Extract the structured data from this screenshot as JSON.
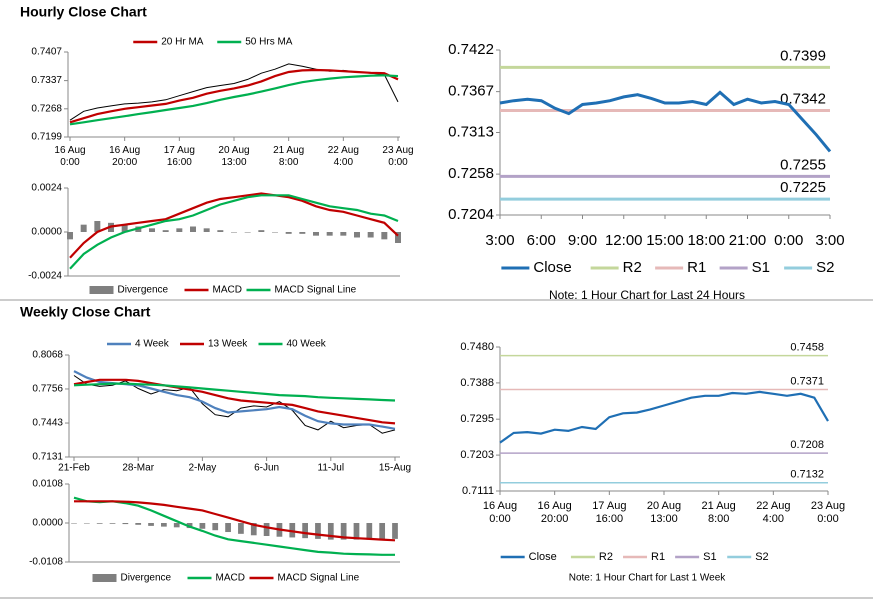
{
  "chart_data": [
    {
      "type": "line",
      "title": "Hourly Close Chart",
      "categories": [
        "16 Aug\n0:00",
        null,
        null,
        null,
        "16 Aug\n20:00",
        null,
        null,
        null,
        "17 Aug\n16:00",
        null,
        null,
        null,
        "20 Aug\n13:00",
        null,
        null,
        null,
        "21 Aug\n8:00",
        null,
        null,
        null,
        "22 Aug\n4:00",
        null,
        null,
        null,
        "23 Aug\n0:00"
      ],
      "ylim": [
        0.7199,
        0.7407
      ],
      "yticks": [
        0.7199,
        0.7268,
        0.7337,
        0.7407
      ],
      "series": [
        {
          "color": "#000000",
          "style": "line",
          "values": [
            0.724,
            0.7262,
            0.727,
            0.7275,
            0.728,
            0.7282,
            0.7285,
            0.729,
            0.73,
            0.731,
            0.732,
            0.7325,
            0.733,
            0.734,
            0.7355,
            0.7365,
            0.7378,
            0.7372,
            0.7365,
            0.736,
            0.7362,
            0.7358,
            0.7355,
            0.7352,
            0.7285
          ]
        },
        {
          "name": "20 Hr MA",
          "color": "#c00000",
          "style": "line",
          "values": [
            0.7235,
            0.7245,
            0.7255,
            0.7262,
            0.7268,
            0.7272,
            0.7276,
            0.728,
            0.7288,
            0.7295,
            0.7305,
            0.7312,
            0.7318,
            0.7325,
            0.7335,
            0.7348,
            0.7358,
            0.7362,
            0.7363,
            0.7362,
            0.736,
            0.7358,
            0.7356,
            0.7355,
            0.734
          ]
        },
        {
          "name": "50 Hrs MA",
          "color": "#00b050",
          "style": "line",
          "values": [
            0.723,
            0.7235,
            0.724,
            0.7245,
            0.725,
            0.7255,
            0.726,
            0.7265,
            0.727,
            0.7275,
            0.7282,
            0.729,
            0.7297,
            0.7303,
            0.731,
            0.7318,
            0.7326,
            0.7333,
            0.7338,
            0.7342,
            0.7345,
            0.7347,
            0.7349,
            0.735,
            0.7348
          ]
        }
      ]
    },
    {
      "type": "line",
      "categories": [
        null,
        null,
        null,
        null,
        null,
        null,
        null,
        null,
        null,
        null,
        null,
        null,
        null,
        null,
        null,
        null,
        null,
        null,
        null,
        null,
        null,
        null,
        null,
        null,
        null
      ],
      "ylim": [
        -0.0024,
        0.0024
      ],
      "yticks": [
        -0.0024,
        {
          "value": 0,
          "label": "0.0000"
        },
        0.0024
      ],
      "series": [
        {
          "name": "Divergence",
          "color": "#7f7f7f",
          "style": "bar",
          "values": [
            -0.0004,
            0.0004,
            0.0006,
            0.0005,
            0.0004,
            0.0003,
            0.0002,
            0.0001,
            0.0002,
            0.0003,
            0.0002,
            0.0001,
            0,
            0,
            0.0001,
            0,
            -0.0001,
            -0.0001,
            -0.0002,
            -0.0002,
            -0.0002,
            -0.0003,
            -0.0003,
            -0.0004,
            -0.0006
          ]
        },
        {
          "name": "MACD",
          "color": "#c00000",
          "style": "line",
          "values": [
            -0.0014,
            -0.0006,
            0,
            0.0003,
            0.0004,
            0.0005,
            0.0006,
            0.0007,
            0.001,
            0.0013,
            0.0016,
            0.0018,
            0.0019,
            0.002,
            0.0021,
            0.002,
            0.0019,
            0.0017,
            0.0014,
            0.0012,
            0.0011,
            0.0009,
            0.0007,
            0.0005,
            -0.0002
          ]
        },
        {
          "name": "MACD Signal Line",
          "color": "#00b050",
          "style": "line",
          "values": [
            -0.002,
            -0.0012,
            -0.0007,
            -0.0003,
            0,
            0.0002,
            0.0004,
            0.0006,
            0.0007,
            0.0009,
            0.0012,
            0.0015,
            0.0017,
            0.0019,
            0.002,
            0.002,
            0.002,
            0.0018,
            0.0016,
            0.0014,
            0.0013,
            0.0012,
            0.001,
            0.0009,
            0.0006
          ]
        }
      ]
    },
    {
      "type": "line",
      "note": "Note: 1 Hour Chart for Last 24 Hours",
      "categories": [
        "3:00",
        null,
        null,
        "6:00",
        null,
        null,
        "9:00",
        null,
        null,
        "12:00",
        null,
        null,
        "15:00",
        null,
        null,
        "18:00",
        null,
        null,
        "21:00",
        null,
        null,
        "0:00",
        null,
        null,
        "3:00"
      ],
      "ylim": [
        0.7204,
        0.7422
      ],
      "yticks": [
        0.7204,
        0.7258,
        0.7313,
        0.7367,
        0.7422
      ],
      "series": [
        {
          "name": "Close",
          "color": "#1f6fb4",
          "style": "line",
          "values": [
            0.7352,
            0.7355,
            0.7357,
            0.7355,
            0.7345,
            0.7338,
            0.735,
            0.7352,
            0.7355,
            0.736,
            0.7363,
            0.7358,
            0.7352,
            0.7352,
            0.7354,
            0.735,
            0.7366,
            0.735,
            0.7357,
            0.7352,
            0.7354,
            0.735,
            0.733,
            0.731,
            0.7288
          ]
        },
        {
          "name": "R2",
          "color": "#c4d79b",
          "style": "level",
          "value": 0.7399
        },
        {
          "name": "R1",
          "color": "#e6b9b8",
          "style": "level",
          "value": 0.7342
        },
        {
          "name": "S1",
          "color": "#b3a2c7",
          "style": "level",
          "value": 0.7255
        },
        {
          "name": "S2",
          "color": "#93cddd",
          "style": "level",
          "value": 0.7225
        }
      ]
    },
    {
      "type": "line",
      "title": "Weekly Close Chart",
      "categories": [
        "21-Feb",
        null,
        null,
        null,
        null,
        "28-Mar",
        null,
        null,
        null,
        null,
        "2-May",
        null,
        null,
        null,
        null,
        "6-Jun",
        null,
        null,
        null,
        null,
        "11-Jul",
        null,
        null,
        null,
        null,
        "15-Aug"
      ],
      "ylim": [
        0.7131,
        0.8068
      ],
      "yticks": [
        0.7131,
        0.7443,
        0.7756,
        0.8068
      ],
      "series": [
        {
          "color": "#000000",
          "style": "line",
          "values": [
            0.788,
            0.78,
            0.778,
            0.779,
            0.783,
            0.776,
            0.771,
            0.775,
            0.774,
            0.777,
            0.762,
            0.752,
            0.75,
            0.758,
            0.76,
            0.759,
            0.764,
            0.756,
            0.742,
            0.738,
            0.746,
            0.74,
            0.742,
            0.743,
            0.735,
            0.738
          ]
        },
        {
          "name": "4 Week",
          "color": "#4f81bd",
          "style": "line",
          "values": [
            0.792,
            0.786,
            0.782,
            0.781,
            0.78,
            0.779,
            0.776,
            0.773,
            0.77,
            0.768,
            0.764,
            0.758,
            0.754,
            0.755,
            0.756,
            0.757,
            0.759,
            0.757,
            0.751,
            0.746,
            0.744,
            0.743,
            0.743,
            0.743,
            0.741,
            0.739
          ]
        },
        {
          "name": "13 Week",
          "color": "#c00000",
          "style": "line",
          "values": [
            0.78,
            0.782,
            0.784,
            0.784,
            0.784,
            0.783,
            0.781,
            0.779,
            0.777,
            0.775,
            0.773,
            0.77,
            0.767,
            0.765,
            0.764,
            0.763,
            0.762,
            0.761,
            0.758,
            0.755,
            0.753,
            0.751,
            0.749,
            0.747,
            0.745,
            0.744
          ]
        },
        {
          "name": "40 Week",
          "color": "#00b050",
          "style": "line",
          "values": [
            0.779,
            0.7795,
            0.78,
            0.7805,
            0.7805,
            0.78,
            0.7795,
            0.779,
            0.778,
            0.777,
            0.776,
            0.775,
            0.774,
            0.773,
            0.772,
            0.771,
            0.77,
            0.7695,
            0.769,
            0.768,
            0.7675,
            0.767,
            0.7665,
            0.766,
            0.7655,
            0.765
          ]
        }
      ]
    },
    {
      "type": "line",
      "categories": [
        null,
        null,
        null,
        null,
        null,
        null,
        null,
        null,
        null,
        null,
        null,
        null,
        null,
        null,
        null,
        null,
        null,
        null,
        null,
        null,
        null,
        null,
        null,
        null,
        null,
        null
      ],
      "ylim": [
        -0.0108,
        0.0108
      ],
      "yticks": [
        -0.0108,
        {
          "value": 0,
          "label": "0.0000"
        },
        0.0108
      ],
      "series": [
        {
          "name": "Divergence",
          "color": "#7f7f7f",
          "style": "bar",
          "values": [
            -0.0001,
            -0.0001,
            -0.0002,
            -0.0002,
            -0.0003,
            -0.0005,
            -0.0008,
            -0.001,
            -0.0012,
            -0.0014,
            -0.0016,
            -0.002,
            -0.0025,
            -0.003,
            -0.0034,
            -0.0036,
            -0.0038,
            -0.004,
            -0.0042,
            -0.0044,
            -0.0046,
            -0.0046,
            -0.0046,
            -0.0046,
            -0.0046,
            -0.0044
          ]
        },
        {
          "name": "MACD",
          "color": "#00b050",
          "style": "line",
          "values": [
            0.007,
            0.006,
            0.0058,
            0.006,
            0.0055,
            0.0048,
            0.0035,
            0.002,
            0.0005,
            -0.001,
            -0.0022,
            -0.0035,
            -0.0045,
            -0.005,
            -0.0055,
            -0.006,
            -0.0065,
            -0.007,
            -0.0075,
            -0.008,
            -0.0082,
            -0.0085,
            -0.0086,
            -0.0087,
            -0.0088,
            -0.0088
          ]
        },
        {
          "name": "MACD Signal Line",
          "color": "#c00000",
          "style": "line",
          "values": [
            0.006,
            0.006,
            0.006,
            0.006,
            0.0059,
            0.0057,
            0.0054,
            0.005,
            0.0045,
            0.004,
            0.0035,
            0.0025,
            0.0015,
            0.0005,
            -0.0005,
            -0.0012,
            -0.0018,
            -0.0023,
            -0.0028,
            -0.0032,
            -0.0036,
            -0.004,
            -0.0042,
            -0.0044,
            -0.0046,
            -0.0048
          ]
        }
      ]
    },
    {
      "type": "line",
      "note": "Note: 1 Hour Chart for Last 1 Week",
      "categories": [
        "16 Aug\n0:00",
        null,
        null,
        null,
        "16 Aug\n20:00",
        null,
        null,
        null,
        "17 Aug\n16:00",
        null,
        null,
        null,
        "20 Aug\n13:00",
        null,
        null,
        null,
        "21 Aug\n8:00",
        null,
        null,
        null,
        "22 Aug\n4:00",
        null,
        null,
        null,
        "23 Aug\n0:00"
      ],
      "ylim": [
        0.7111,
        0.748
      ],
      "yticks": [
        0.7111,
        0.7203,
        0.7295,
        0.7388,
        {
          "value": 0.748,
          "label": "0.7480"
        }
      ],
      "series": [
        {
          "name": "Close",
          "color": "#1f6fb4",
          "style": "line",
          "values": [
            0.7235,
            0.726,
            0.7262,
            0.7258,
            0.7268,
            0.7265,
            0.7275,
            0.727,
            0.73,
            0.731,
            0.7312,
            0.732,
            0.733,
            0.734,
            0.735,
            0.7355,
            0.7355,
            0.7362,
            0.736,
            0.7365,
            0.736,
            0.7355,
            0.736,
            0.735,
            0.729
          ]
        },
        {
          "name": "R2",
          "color": "#c4d79b",
          "style": "level",
          "value": 0.7458
        },
        {
          "name": "R1",
          "color": "#e6b9b8",
          "style": "level",
          "value": 0.7371
        },
        {
          "name": "S1",
          "color": "#b3a2c7",
          "style": "level",
          "value": 0.7208
        },
        {
          "name": "S2",
          "color": "#93cddd",
          "style": "level",
          "value": 0.7132
        }
      ]
    }
  ]
}
